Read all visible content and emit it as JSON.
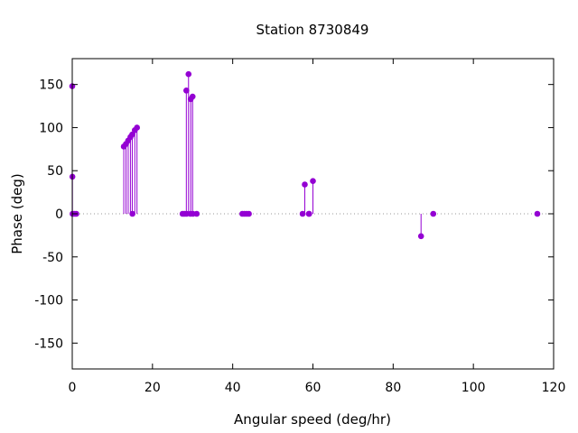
{
  "chart_data": {
    "type": "scatter",
    "title": "Station 8730849",
    "xlabel": "Angular speed (deg/hr)",
    "ylabel": "Phase (deg)",
    "xlim": [
      0,
      120
    ],
    "ylim": [
      -180,
      180
    ],
    "xticks": [
      0,
      20,
      40,
      60,
      80,
      100,
      120
    ],
    "yticks": [
      -150,
      -100,
      -50,
      0,
      50,
      100,
      150
    ],
    "zero_line": true,
    "grid": false,
    "legend": "none",
    "marker_color": "#9400d3",
    "series": [
      {
        "points": [
          {
            "x": 0.0,
            "y": 148
          },
          {
            "x": 0.04,
            "y": 43
          },
          {
            "x": 0.08,
            "y": 0
          },
          {
            "x": 0.54,
            "y": 0
          },
          {
            "x": 1.0,
            "y": 0
          },
          {
            "x": 12.85,
            "y": 78
          },
          {
            "x": 13.4,
            "y": 81
          },
          {
            "x": 13.94,
            "y": 85
          },
          {
            "x": 14.5,
            "y": 89
          },
          {
            "x": 14.96,
            "y": 92
          },
          {
            "x": 15.0,
            "y": 0
          },
          {
            "x": 15.59,
            "y": 97
          },
          {
            "x": 16.14,
            "y": 100
          },
          {
            "x": 27.5,
            "y": 0
          },
          {
            "x": 27.97,
            "y": 0
          },
          {
            "x": 28.44,
            "y": 143
          },
          {
            "x": 28.51,
            "y": 0
          },
          {
            "x": 28.99,
            "y": 162
          },
          {
            "x": 29.46,
            "y": 0
          },
          {
            "x": 29.53,
            "y": 133
          },
          {
            "x": 30.0,
            "y": 136
          },
          {
            "x": 30.08,
            "y": 0
          },
          {
            "x": 31.02,
            "y": 0
          },
          {
            "x": 42.4,
            "y": 0
          },
          {
            "x": 42.93,
            "y": 0
          },
          {
            "x": 43.48,
            "y": 0
          },
          {
            "x": 44.03,
            "y": 0
          },
          {
            "x": 57.42,
            "y": 0
          },
          {
            "x": 57.97,
            "y": 34
          },
          {
            "x": 58.98,
            "y": 0
          },
          {
            "x": 59.07,
            "y": 0
          },
          {
            "x": 60.0,
            "y": 38
          },
          {
            "x": 86.95,
            "y": -26
          },
          {
            "x": 90.0,
            "y": 0
          },
          {
            "x": 115.94,
            "y": 0
          }
        ]
      }
    ]
  }
}
